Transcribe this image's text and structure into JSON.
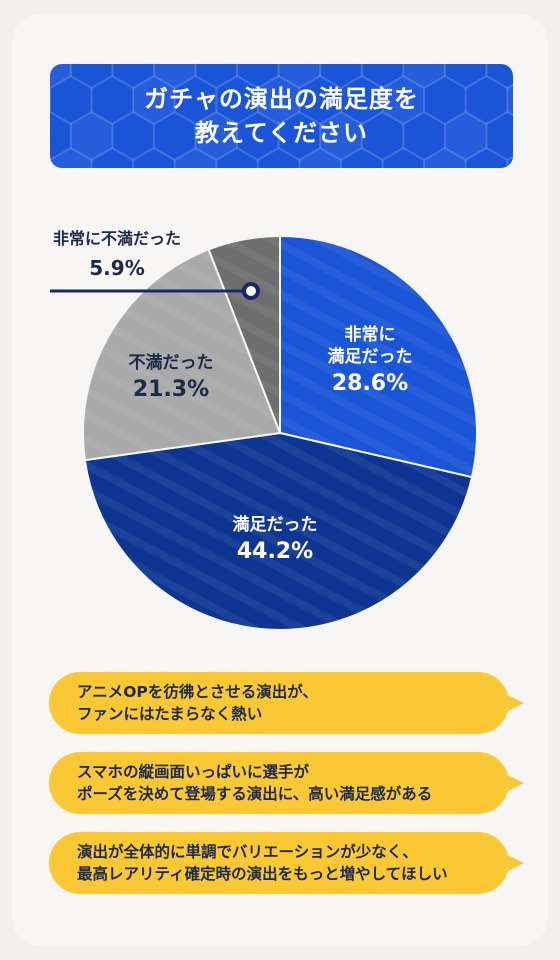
{
  "title": {
    "line1": "ガチャの演出の満足度を",
    "line2": "教えてください"
  },
  "chart_data": {
    "type": "pie",
    "slices": [
      {
        "label_lines": [
          "非常に",
          "満足だった"
        ],
        "value": 28.6,
        "value_text": "28.6%",
        "color": "#1a55d8"
      },
      {
        "label_lines": [
          "満足だった"
        ],
        "value": 44.2,
        "value_text": "44.2%",
        "color": "#0e3592"
      },
      {
        "label_lines": [
          "不満だった"
        ],
        "value": 21.3,
        "value_text": "21.3%",
        "color": "#a9a9a9"
      },
      {
        "label_lines": [
          "非常に不満だった"
        ],
        "value": 5.9,
        "value_text": "5.9%",
        "color": "#6e6e6e"
      }
    ]
  },
  "comments": [
    {
      "line1": "アニメOPを彷彿とさせる演出が、",
      "line2": "ファンにはたまらなく熱い"
    },
    {
      "line1": "スマホの縦画面いっぱいに選手が",
      "line2": "ポーズを決めて登場する演出に、高い満足感がある"
    },
    {
      "line1": "演出が全体的に単調でバリエーションが少なく、",
      "line2": "最高レアリティ確定時の演出をもっと増やしてほしい"
    }
  ],
  "colors": {
    "title_bg": "#1a55d8",
    "bubble": "#fbc835",
    "leader": "#13296b"
  }
}
